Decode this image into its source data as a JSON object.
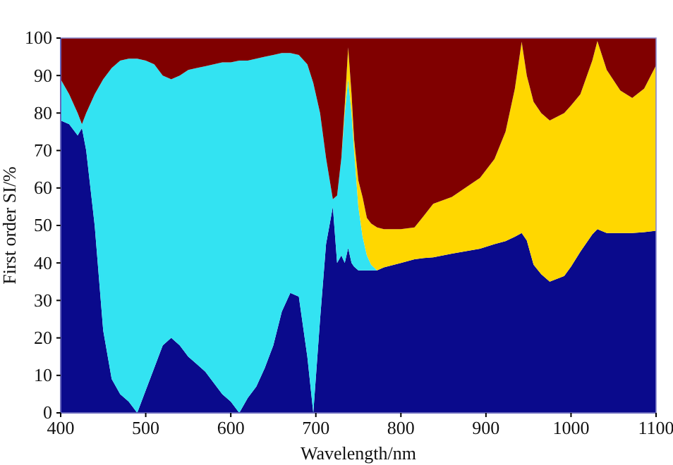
{
  "chart_data": {
    "type": "area",
    "stacked": true,
    "xlabel": "Wavelength/nm",
    "ylabel": "First order SI/%",
    "x": [
      400,
      410,
      420,
      425,
      430,
      440,
      450,
      460,
      470,
      480,
      490,
      500,
      510,
      520,
      530,
      540,
      550,
      560,
      570,
      580,
      590,
      600,
      610,
      620,
      630,
      640,
      650,
      660,
      670,
      680,
      690,
      697,
      705,
      712,
      720,
      725,
      730,
      734,
      738,
      742,
      745,
      750,
      755,
      760,
      765,
      772,
      780,
      800,
      816,
      827,
      838,
      860,
      893,
      910,
      923,
      934,
      942,
      948,
      956,
      965,
      975,
      992,
      1000,
      1011,
      1025,
      1031,
      1042,
      1058,
      1072,
      1086,
      1100
    ],
    "series": [
      {
        "color": "#0a0a8c",
        "values": [
          78,
          77,
          74,
          76,
          70,
          50,
          22,
          9,
          5,
          3,
          0,
          6,
          12,
          18,
          20,
          18,
          15,
          13,
          11,
          8,
          5,
          3,
          0,
          4,
          7,
          12,
          18,
          27,
          32,
          31,
          15,
          0,
          25,
          45,
          55,
          40,
          42,
          40,
          44,
          40,
          39,
          38,
          38,
          38,
          38,
          38,
          38.8,
          40,
          41,
          41.3,
          41.5,
          42.5,
          43.8,
          45,
          45.8,
          47,
          48,
          46,
          39.5,
          37,
          35,
          36.5,
          39,
          43,
          47.6,
          49,
          48,
          48,
          48,
          48.2,
          48.6
        ]
      },
      {
        "color": "#33e3f2",
        "values": [
          11,
          8,
          6,
          1,
          10,
          35,
          67,
          83,
          89,
          91.5,
          94.5,
          88,
          81,
          72,
          69,
          72,
          76.5,
          79,
          81.5,
          85,
          88.5,
          90.5,
          94,
          90,
          87.5,
          83,
          77.5,
          69,
          64,
          64.5,
          78,
          88,
          55,
          23,
          2,
          18,
          26,
          40,
          45,
          40,
          31,
          17,
          9,
          4,
          1.5,
          0,
          0,
          0,
          0,
          0,
          0,
          0,
          0,
          0,
          0,
          0,
          0,
          0,
          0,
          0,
          0,
          0,
          0,
          0,
          0,
          0,
          0,
          0,
          0,
          0,
          0
        ]
      },
      {
        "color": "#ffd700",
        "values": [
          0,
          0,
          0,
          0,
          0,
          0,
          0,
          0,
          0,
          0,
          0,
          0,
          0,
          0,
          0,
          0,
          0,
          0,
          0,
          0,
          0,
          0,
          0,
          0,
          0,
          0,
          0,
          0,
          0,
          0,
          0,
          0,
          0,
          0,
          0,
          0,
          0,
          2,
          8.5,
          5,
          3,
          7,
          10.5,
          10,
          11,
          11.5,
          10.2,
          9,
          8.5,
          11.3,
          14.3,
          15.1,
          18.9,
          22.7,
          29.2,
          39.5,
          51,
          44,
          43.5,
          43,
          43,
          43.5,
          43,
          42,
          46.4,
          50.2,
          43.5,
          38,
          36,
          38.3,
          44.1
        ]
      },
      {
        "color": "#800000",
        "values": [
          11,
          15,
          20,
          23,
          20,
          15,
          11,
          8,
          6,
          5.5,
          5.5,
          6,
          7,
          10,
          11,
          10,
          8.5,
          8,
          7.5,
          7,
          6.5,
          6.5,
          6,
          6,
          5.5,
          5,
          4.5,
          4,
          4,
          4.5,
          7,
          12,
          20,
          32,
          43,
          42,
          32,
          18,
          2.5,
          15,
          27,
          38,
          42.5,
          48,
          49.5,
          50.5,
          51,
          51,
          50.5,
          47.4,
          44.2,
          42.4,
          37.3,
          32.3,
          25,
          13.5,
          1,
          10,
          17,
          20,
          22,
          20,
          18,
          15,
          6,
          0.8,
          8.5,
          14,
          16,
          13.5,
          7.3
        ]
      }
    ],
    "xlim": [
      400,
      1100
    ],
    "xticks": [
      400,
      500,
      600,
      700,
      800,
      900,
      1000,
      1100
    ],
    "ylim": [
      0,
      100
    ],
    "yticks": [
      0,
      10,
      20,
      30,
      40,
      50,
      60,
      70,
      80,
      90,
      100
    ]
  }
}
